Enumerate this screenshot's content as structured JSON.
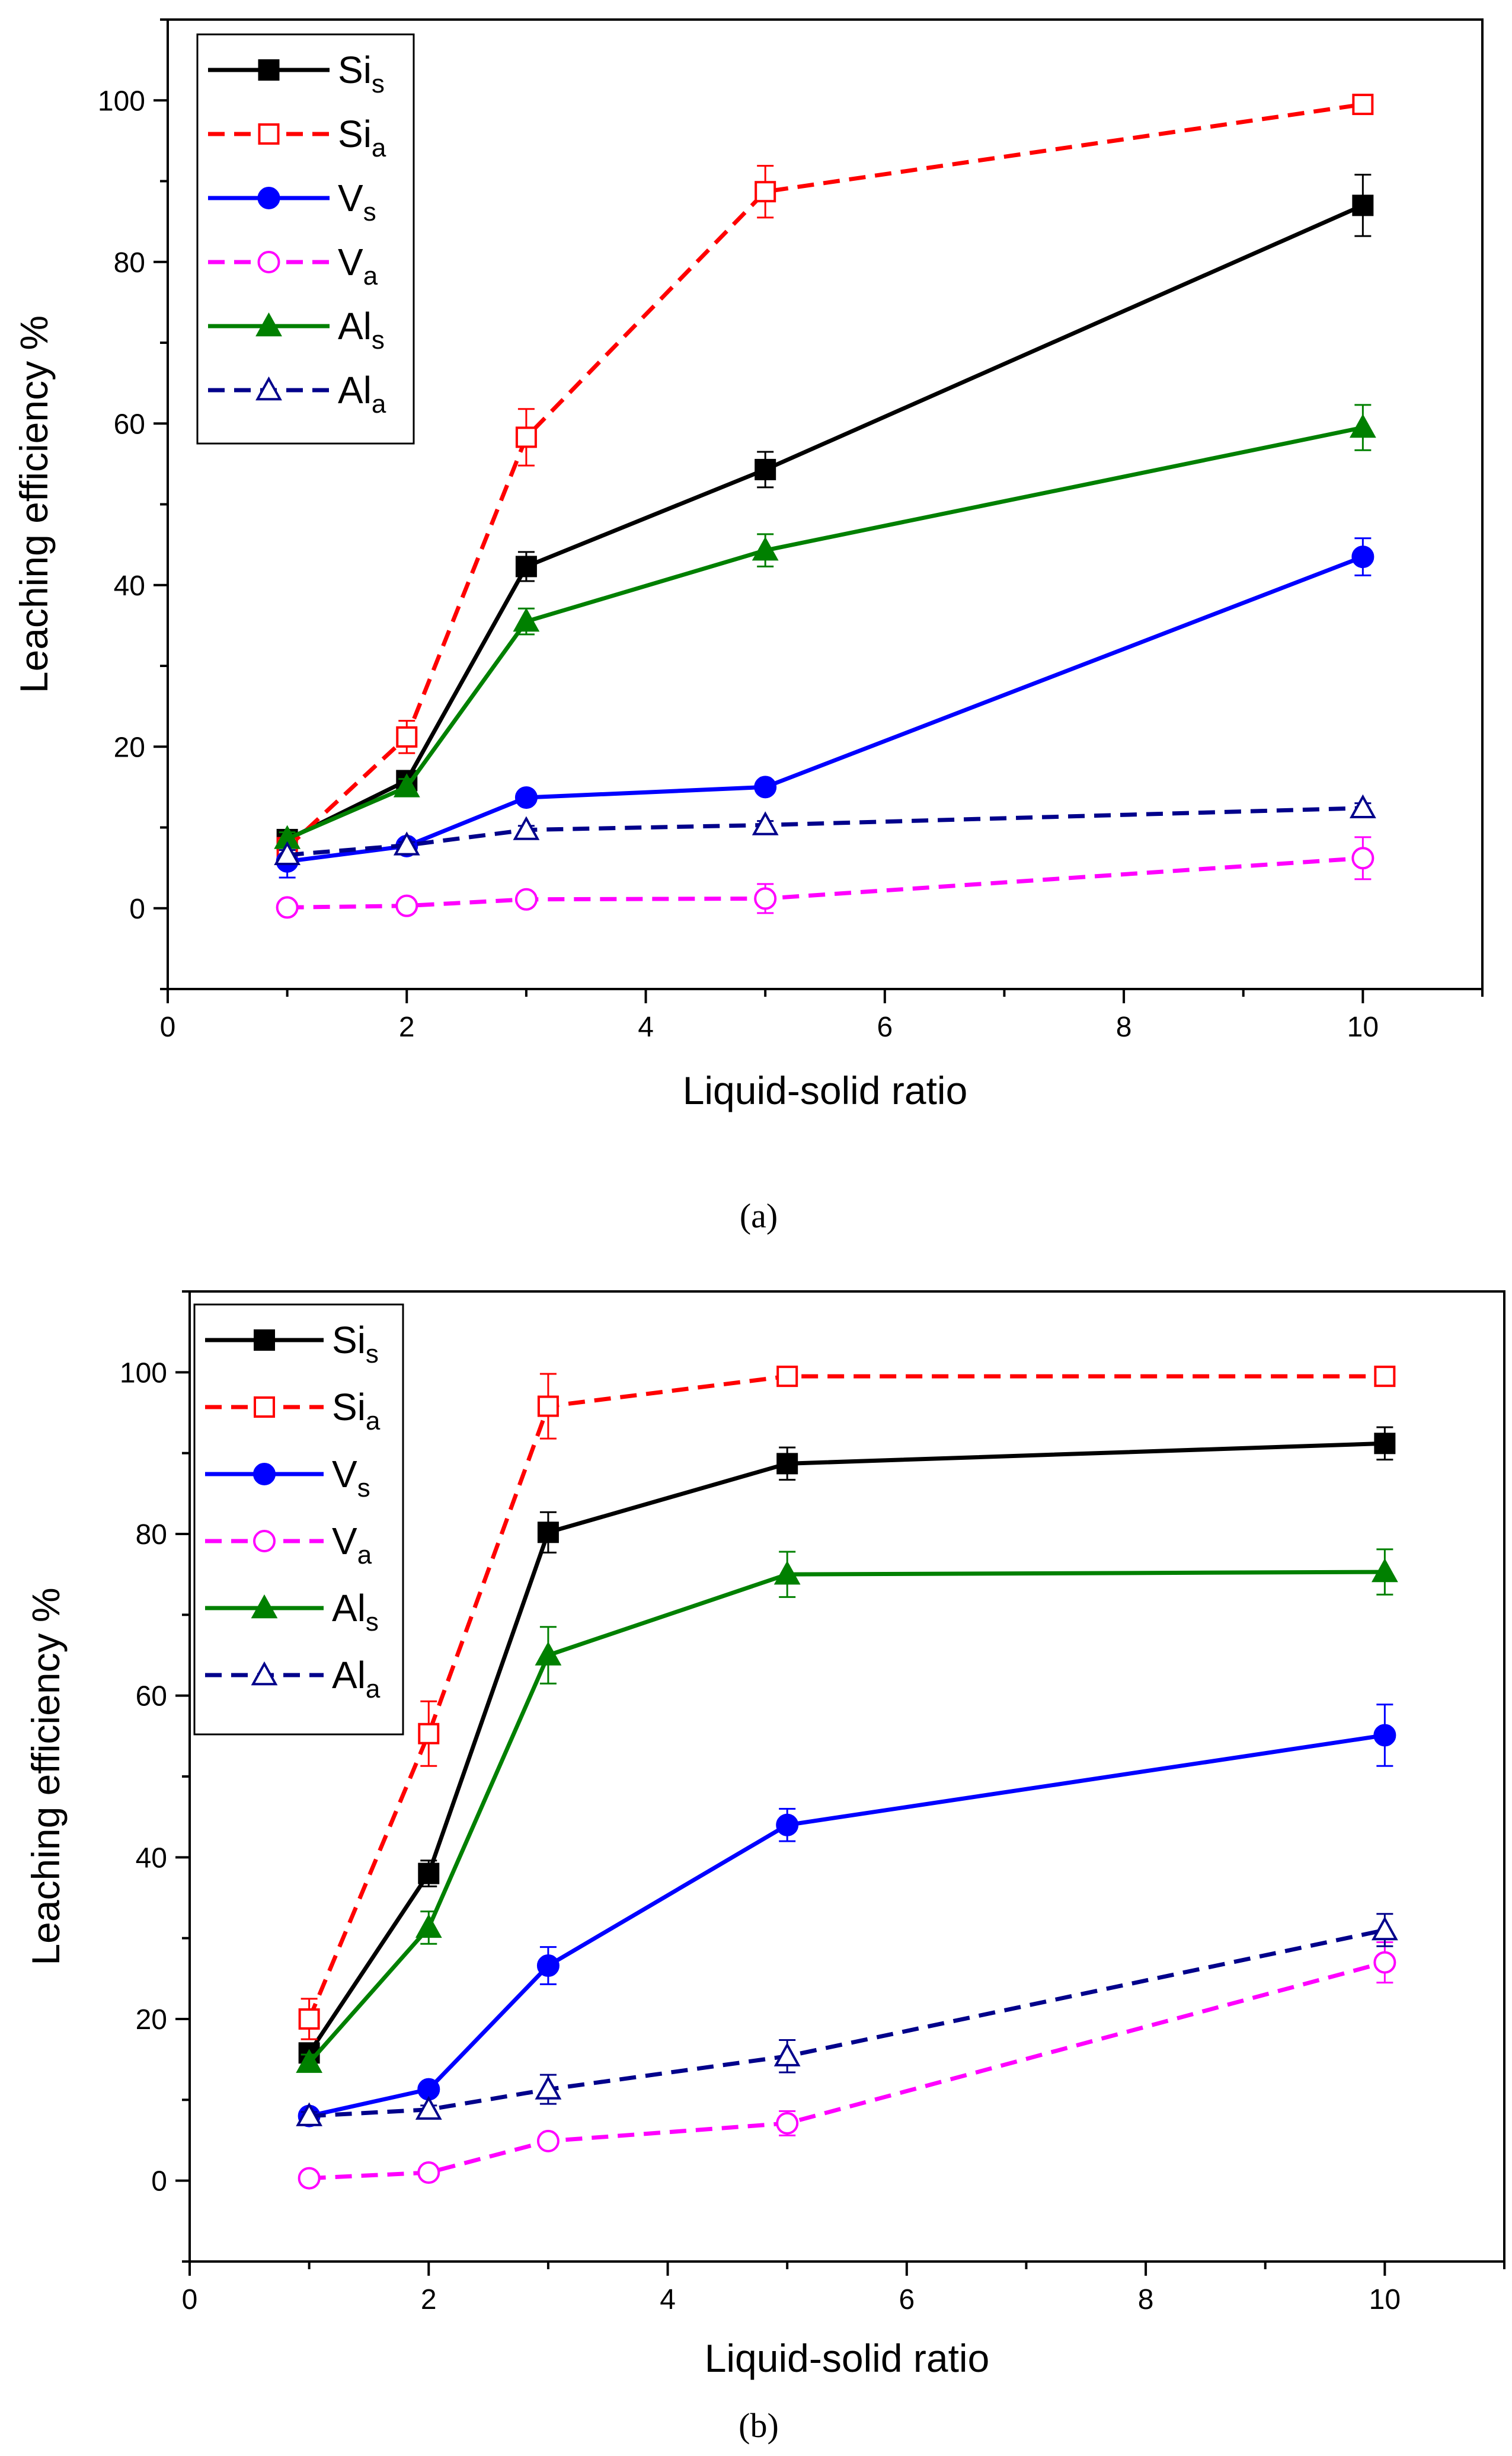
{
  "figure": {
    "captions": [
      "(a)",
      "(b)"
    ]
  },
  "chart_data": [
    {
      "type": "line",
      "panel": "a",
      "title": "",
      "xlabel": "Liquid-solid ratio",
      "ylabel": "Leaching efficiency %",
      "xlim": [
        0,
        11
      ],
      "ylim": [
        -10,
        110
      ],
      "xticks": [
        0,
        2,
        4,
        6,
        8,
        10
      ],
      "yticks": [
        0,
        20,
        40,
        60,
        80,
        100
      ],
      "legend_position": "top-left",
      "series": [
        {
          "name": "Si",
          "sub": "s",
          "key": "si-s",
          "color": "#000000",
          "dashed": false,
          "marker": "square",
          "filled": true,
          "x": [
            1,
            2,
            3,
            5,
            10
          ],
          "values": [
            8.5,
            15.8,
            42.3,
            54.3,
            87.0
          ],
          "errors": [
            1.0,
            1.2,
            1.8,
            2.2,
            3.8
          ]
        },
        {
          "name": "Si",
          "sub": "a",
          "key": "si-a",
          "color": "#ff0000",
          "dashed": true,
          "marker": "square",
          "filled": false,
          "x": [
            1,
            2,
            3,
            5,
            10
          ],
          "values": [
            7.5,
            21.2,
            58.3,
            88.7,
            99.5
          ],
          "errors": [
            1.0,
            2.0,
            3.5,
            3.2,
            0.5
          ]
        },
        {
          "name": "V",
          "sub": "s",
          "key": "v-s",
          "color": "#0000ff",
          "dashed": false,
          "marker": "circle",
          "filled": true,
          "x": [
            1,
            2,
            3,
            5,
            10
          ],
          "values": [
            5.8,
            7.7,
            13.7,
            15.0,
            43.5
          ],
          "errors": [
            2.0,
            0.6,
            0.6,
            0.6,
            2.3
          ]
        },
        {
          "name": "V",
          "sub": "a",
          "key": "v-a",
          "color": "#ff00ff",
          "dashed": true,
          "marker": "circle",
          "filled": false,
          "x": [
            1,
            2,
            3,
            5,
            10
          ],
          "values": [
            0.1,
            0.3,
            1.1,
            1.2,
            6.2
          ],
          "errors": [
            0.2,
            0.2,
            0.5,
            1.8,
            2.6
          ]
        },
        {
          "name": "Al",
          "sub": "s",
          "key": "al-s",
          "color": "#008000",
          "dashed": false,
          "marker": "triangle",
          "filled": true,
          "x": [
            1,
            2,
            3,
            5,
            10
          ],
          "values": [
            8.6,
            15.0,
            35.5,
            44.3,
            59.5
          ],
          "errors": [
            0.8,
            1.0,
            1.6,
            2.0,
            2.8
          ]
        },
        {
          "name": "Al",
          "sub": "a",
          "key": "al-a",
          "color": "#00008b",
          "dashed": true,
          "marker": "triangle",
          "filled": false,
          "x": [
            1,
            2,
            3,
            5,
            10
          ],
          "values": [
            6.6,
            7.8,
            9.7,
            10.3,
            12.4
          ],
          "errors": [
            0.6,
            0.4,
            0.5,
            0.5,
            0.6
          ]
        }
      ]
    },
    {
      "type": "line",
      "panel": "b",
      "title": "",
      "xlabel": "Liquid-solid ratio",
      "ylabel": "Leaching efficiency %",
      "xlim": [
        0,
        11
      ],
      "ylim": [
        -10,
        110
      ],
      "xticks": [
        0,
        2,
        4,
        6,
        8,
        10
      ],
      "yticks": [
        0,
        20,
        40,
        60,
        80,
        100
      ],
      "legend_position": "top-left",
      "series": [
        {
          "name": "Si",
          "sub": "s",
          "key": "si-s",
          "color": "#000000",
          "dashed": false,
          "marker": "square",
          "filled": true,
          "x": [
            1,
            2,
            3,
            5,
            10
          ],
          "values": [
            15.8,
            38.0,
            80.2,
            88.7,
            91.2
          ],
          "errors": [
            1.0,
            1.6,
            2.5,
            2.0,
            2.0
          ]
        },
        {
          "name": "Si",
          "sub": "a",
          "key": "si-a",
          "color": "#ff0000",
          "dashed": true,
          "marker": "square",
          "filled": false,
          "x": [
            1,
            2,
            3,
            5,
            10
          ],
          "values": [
            20.0,
            55.3,
            95.8,
            99.5,
            99.5
          ],
          "errors": [
            2.5,
            4.0,
            4.0,
            0.5,
            0.5
          ]
        },
        {
          "name": "V",
          "sub": "s",
          "key": "v-s",
          "color": "#0000ff",
          "dashed": false,
          "marker": "circle",
          "filled": true,
          "x": [
            1,
            2,
            3,
            5,
            10
          ],
          "values": [
            8.0,
            11.3,
            26.6,
            44.0,
            55.1
          ],
          "errors": [
            0.5,
            0.8,
            2.3,
            2.0,
            3.8
          ]
        },
        {
          "name": "V",
          "sub": "a",
          "key": "v-a",
          "color": "#ff00ff",
          "dashed": true,
          "marker": "circle",
          "filled": false,
          "x": [
            1,
            2,
            3,
            5,
            10
          ],
          "values": [
            0.3,
            1.0,
            4.9,
            7.1,
            27.0
          ],
          "errors": [
            0.3,
            0.5,
            0.6,
            1.5,
            2.5
          ]
        },
        {
          "name": "Al",
          "sub": "s",
          "key": "al-s",
          "color": "#008000",
          "dashed": false,
          "marker": "triangle",
          "filled": true,
          "x": [
            1,
            2,
            3,
            5,
            10
          ],
          "values": [
            14.6,
            31.3,
            65.0,
            75.0,
            75.3
          ],
          "errors": [
            1.0,
            2.0,
            3.5,
            2.8,
            2.8
          ]
        },
        {
          "name": "Al",
          "sub": "a",
          "key": "al-a",
          "color": "#00008b",
          "dashed": true,
          "marker": "triangle",
          "filled": false,
          "x": [
            1,
            2,
            3,
            5,
            10
          ],
          "values": [
            8.0,
            8.8,
            11.3,
            15.4,
            31.0
          ],
          "errors": [
            0.5,
            0.5,
            1.8,
            2.0,
            2.0
          ]
        }
      ]
    }
  ]
}
